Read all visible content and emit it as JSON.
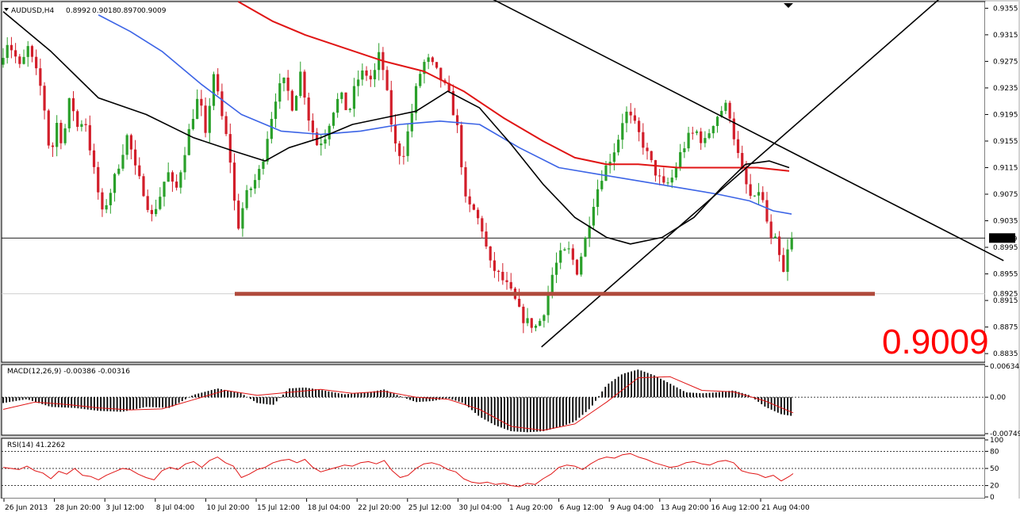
{
  "chart_data": [
    {
      "type": "candlestick",
      "title": "AUDUSD,H4",
      "ohlc_readout": {
        "open": "0.8992",
        "high": "0.9018",
        "low": "0.8970",
        "close": "0.9009"
      },
      "current_price": "0.9009",
      "current_price_big": "0.9009",
      "ylim": [
        0.8822,
        0.9365
      ],
      "price_ticks": [
        "0.9355",
        "0.9315",
        "0.9275",
        "0.9235",
        "0.9195",
        "0.9155",
        "0.9115",
        "0.9075",
        "0.9035",
        "0.8995",
        "0.8955",
        "0.8915",
        "0.8875",
        "0.8835"
      ],
      "support_tag": "0.8925",
      "support_level": 0.8925,
      "x_labels": [
        "26 Jun 2013",
        "28 Jun 20:00",
        "3 Jul 12:00",
        "8 Jul 04:00",
        "10 Jul 20:00",
        "15 Jul 12:00",
        "18 Jul 04:00",
        "22 Jul 20:00",
        "25 Jul 12:00",
        "30 Jul 04:00",
        "1 Aug 20:00",
        "6 Aug 12:00",
        "9 Aug 04:00",
        "13 Aug 20:00",
        "16 Aug 12:00",
        "21 Aug 04:00"
      ],
      "price_path": [
        [
          0,
          0.927
        ],
        [
          10,
          0.9305
        ],
        [
          18,
          0.929
        ],
        [
          28,
          0.926
        ],
        [
          35,
          0.93
        ],
        [
          45,
          0.9265
        ],
        [
          55,
          0.9225
        ],
        [
          65,
          0.9125
        ],
        [
          72,
          0.9185
        ],
        [
          80,
          0.915
        ],
        [
          90,
          0.9225
        ],
        [
          98,
          0.9175
        ],
        [
          108,
          0.919
        ],
        [
          118,
          0.912
        ],
        [
          130,
          0.9045
        ],
        [
          142,
          0.9085
        ],
        [
          152,
          0.9125
        ],
        [
          162,
          0.9165
        ],
        [
          172,
          0.911
        ],
        [
          182,
          0.908
        ],
        [
          192,
          0.904
        ],
        [
          202,
          0.907
        ],
        [
          212,
          0.911
        ],
        [
          222,
          0.9075
        ],
        [
          232,
          0.913
        ],
        [
          242,
          0.9185
        ],
        [
          252,
          0.9225
        ],
        [
          260,
          0.916
        ],
        [
          270,
          0.926
        ],
        [
          280,
          0.9195
        ],
        [
          290,
          0.914
        ],
        [
          300,
          0.902
        ],
        [
          310,
          0.907
        ],
        [
          320,
          0.909
        ],
        [
          330,
          0.9115
        ],
        [
          340,
          0.9175
        ],
        [
          350,
          0.923
        ],
        [
          360,
          0.9245
        ],
        [
          370,
          0.9205
        ],
        [
          380,
          0.926
        ],
        [
          390,
          0.919
        ],
        [
          400,
          0.915
        ],
        [
          410,
          0.916
        ],
        [
          420,
          0.92
        ],
        [
          430,
          0.9225
        ],
        [
          440,
          0.9195
        ],
        [
          450,
          0.9245
        ],
        [
          460,
          0.926
        ],
        [
          470,
          0.9245
        ],
        [
          480,
          0.929
        ],
        [
          490,
          0.9215
        ],
        [
          498,
          0.915
        ],
        [
          508,
          0.913
        ],
        [
          518,
          0.9185
        ],
        [
          528,
          0.925
        ],
        [
          538,
          0.928
        ],
        [
          548,
          0.9265
        ],
        [
          558,
          0.9245
        ],
        [
          568,
          0.922
        ],
        [
          578,
          0.917
        ],
        [
          588,
          0.906
        ],
        [
          598,
          0.905
        ],
        [
          608,
          0.9025
        ],
        [
          618,
          0.897
        ],
        [
          628,
          0.8955
        ],
        [
          638,
          0.894
        ],
        [
          648,
          0.892
        ],
        [
          658,
          0.889
        ],
        [
          668,
          0.888
        ],
        [
          678,
          0.8875
        ],
        [
          688,
          0.8905
        ],
        [
          698,
          0.896
        ],
        [
          708,
          0.8985
        ],
        [
          718,
          0.899
        ],
        [
          728,
          0.896
        ],
        [
          738,
          0.9005
        ],
        [
          748,
          0.906
        ],
        [
          758,
          0.91
        ],
        [
          768,
          0.9125
        ],
        [
          778,
          0.915
        ],
        [
          788,
          0.92
        ],
        [
          798,
          0.9185
        ],
        [
          808,
          0.916
        ],
        [
          818,
          0.913
        ],
        [
          828,
          0.9105
        ],
        [
          838,
          0.9085
        ],
        [
          848,
          0.91
        ],
        [
          858,
          0.9135
        ],
        [
          868,
          0.916
        ],
        [
          878,
          0.917
        ],
        [
          888,
          0.915
        ],
        [
          898,
          0.918
        ],
        [
          908,
          0.92
        ],
        [
          918,
          0.921
        ],
        [
          926,
          0.916
        ],
        [
          934,
          0.9115
        ],
        [
          942,
          0.9085
        ],
        [
          950,
          0.906
        ],
        [
          958,
          0.9085
        ],
        [
          966,
          0.904
        ],
        [
          974,
          0.8995
        ],
        [
          980,
          0.901
        ],
        [
          986,
          0.8945
        ],
        [
          992,
          0.8975
        ],
        [
          995,
          0.9009
        ]
      ],
      "ma_black": [
        [
          0,
          0.935
        ],
        [
          60,
          0.929
        ],
        [
          120,
          0.922
        ],
        [
          180,
          0.9195
        ],
        [
          240,
          0.916
        ],
        [
          290,
          0.914
        ],
        [
          330,
          0.9125
        ],
        [
          360,
          0.9145
        ],
        [
          400,
          0.916
        ],
        [
          440,
          0.918
        ],
        [
          480,
          0.919
        ],
        [
          520,
          0.92
        ],
        [
          560,
          0.923
        ],
        [
          600,
          0.9205
        ],
        [
          640,
          0.915
        ],
        [
          680,
          0.909
        ],
        [
          720,
          0.904
        ],
        [
          760,
          0.901
        ],
        [
          790,
          0.9
        ],
        [
          830,
          0.901
        ],
        [
          870,
          0.904
        ],
        [
          905,
          0.9085
        ],
        [
          935,
          0.912
        ],
        [
          965,
          0.9125
        ],
        [
          990,
          0.9115
        ]
      ],
      "ma_blue": [
        [
          120,
          0.9345
        ],
        [
          160,
          0.932
        ],
        [
          200,
          0.929
        ],
        [
          250,
          0.924
        ],
        [
          300,
          0.9195
        ],
        [
          350,
          0.917
        ],
        [
          400,
          0.9165
        ],
        [
          450,
          0.917
        ],
        [
          500,
          0.918
        ],
        [
          550,
          0.9185
        ],
        [
          600,
          0.918
        ],
        [
          650,
          0.9145
        ],
        [
          700,
          0.9115
        ],
        [
          750,
          0.9105
        ],
        [
          800,
          0.9095
        ],
        [
          850,
          0.9085
        ],
        [
          900,
          0.9075
        ],
        [
          940,
          0.9065
        ],
        [
          970,
          0.905
        ],
        [
          993,
          0.9045
        ]
      ],
      "ma_red": [
        [
          296,
          0.9365
        ],
        [
          340,
          0.9335
        ],
        [
          380,
          0.9315
        ],
        [
          430,
          0.9295
        ],
        [
          480,
          0.9275
        ],
        [
          530,
          0.926
        ],
        [
          580,
          0.923
        ],
        [
          630,
          0.919
        ],
        [
          680,
          0.9155
        ],
        [
          720,
          0.913
        ],
        [
          760,
          0.912
        ],
        [
          800,
          0.912
        ],
        [
          850,
          0.9115
        ],
        [
          900,
          0.9115
        ],
        [
          950,
          0.9115
        ],
        [
          990,
          0.911
        ]
      ],
      "trendlines": [
        {
          "from": [
            606,
            0.9375
          ],
          "to": [
            1260,
            0.8975
          ]
        },
        {
          "from": [
            678,
            0.8845
          ],
          "to": [
            1185,
            0.9375
          ]
        }
      ]
    },
    {
      "type": "histogram",
      "title": "MACD(12,26,9) -0.00386 -0.00316",
      "ylim": [
        -0.0078,
        0.0067
      ],
      "ticks": [
        "0.00634",
        "0.00",
        "-0.00749"
      ],
      "main_path": [
        [
          0,
          -0.0012
        ],
        [
          30,
          -0.0004
        ],
        [
          60,
          -0.002
        ],
        [
          90,
          -0.0022
        ],
        [
          120,
          -0.0028
        ],
        [
          150,
          -0.003
        ],
        [
          180,
          -0.002
        ],
        [
          210,
          -0.0022
        ],
        [
          240,
          0.0005
        ],
        [
          270,
          0.0018
        ],
        [
          300,
          0.0008
        ],
        [
          320,
          -0.0012
        ],
        [
          340,
          -0.0016
        ],
        [
          360,
          0.0018
        ],
        [
          380,
          0.002
        ],
        [
          400,
          0.0015
        ],
        [
          430,
          0.0006
        ],
        [
          460,
          0.001
        ],
        [
          480,
          0.0016
        ],
        [
          500,
          0.0002
        ],
        [
          520,
          -0.001
        ],
        [
          540,
          -0.0008
        ],
        [
          560,
          -0.0002
        ],
        [
          580,
          -0.0012
        ],
        [
          600,
          -0.004
        ],
        [
          620,
          -0.0058
        ],
        [
          640,
          -0.007
        ],
        [
          660,
          -0.0072
        ],
        [
          680,
          -0.007
        ],
        [
          700,
          -0.0062
        ],
        [
          720,
          -0.005
        ],
        [
          740,
          -0.0022
        ],
        [
          760,
          0.0025
        ],
        [
          780,
          0.0048
        ],
        [
          800,
          0.0057
        ],
        [
          820,
          0.0045
        ],
        [
          840,
          0.0028
        ],
        [
          860,
          0.001
        ],
        [
          880,
          0.0008
        ],
        [
          900,
          0.001
        ],
        [
          920,
          0.0014
        ],
        [
          940,
          0.0004
        ],
        [
          960,
          -0.002
        ],
        [
          980,
          -0.0035
        ],
        [
          995,
          -0.0039
        ]
      ],
      "signal_path": [
        [
          0,
          -0.0025
        ],
        [
          40,
          -0.001
        ],
        [
          80,
          -0.0015
        ],
        [
          120,
          -0.0022
        ],
        [
          160,
          -0.0026
        ],
        [
          200,
          -0.0024
        ],
        [
          240,
          -0.0005
        ],
        [
          280,
          0.0014
        ],
        [
          320,
          0.0004
        ],
        [
          360,
          0.001
        ],
        [
          400,
          0.0016
        ],
        [
          440,
          0.0008
        ],
        [
          480,
          0.0012
        ],
        [
          520,
          0.0
        ],
        [
          560,
          -0.0004
        ],
        [
          600,
          -0.0025
        ],
        [
          640,
          -0.006
        ],
        [
          680,
          -0.0068
        ],
        [
          720,
          -0.0055
        ],
        [
          760,
          -0.001
        ],
        [
          800,
          0.004
        ],
        [
          840,
          0.0042
        ],
        [
          880,
          0.0014
        ],
        [
          920,
          0.0011
        ],
        [
          960,
          -0.0008
        ],
        [
          995,
          -0.0032
        ]
      ]
    },
    {
      "type": "line",
      "title": "RSI(14) 41.2262",
      "ylim": [
        0,
        100
      ],
      "ticks": [
        "100",
        "80",
        "50",
        "20",
        "0"
      ],
      "levels": [
        80,
        50,
        20
      ],
      "rsi_path": [
        [
          0,
          52
        ],
        [
          10,
          50
        ],
        [
          20,
          48
        ],
        [
          30,
          54
        ],
        [
          40,
          46
        ],
        [
          50,
          42
        ],
        [
          60,
          32
        ],
        [
          70,
          45
        ],
        [
          80,
          40
        ],
        [
          90,
          50
        ],
        [
          100,
          38
        ],
        [
          110,
          36
        ],
        [
          120,
          30
        ],
        [
          130,
          38
        ],
        [
          140,
          44
        ],
        [
          150,
          50
        ],
        [
          160,
          48
        ],
        [
          170,
          40
        ],
        [
          180,
          34
        ],
        [
          190,
          30
        ],
        [
          200,
          46
        ],
        [
          210,
          52
        ],
        [
          220,
          48
        ],
        [
          230,
          58
        ],
        [
          240,
          62
        ],
        [
          250,
          52
        ],
        [
          260,
          64
        ],
        [
          270,
          70
        ],
        [
          280,
          60
        ],
        [
          290,
          54
        ],
        [
          300,
          34
        ],
        [
          310,
          40
        ],
        [
          320,
          48
        ],
        [
          330,
          52
        ],
        [
          340,
          60
        ],
        [
          350,
          64
        ],
        [
          360,
          66
        ],
        [
          370,
          60
        ],
        [
          380,
          66
        ],
        [
          390,
          52
        ],
        [
          400,
          44
        ],
        [
          410,
          48
        ],
        [
          420,
          52
        ],
        [
          430,
          56
        ],
        [
          440,
          54
        ],
        [
          450,
          60
        ],
        [
          460,
          62
        ],
        [
          470,
          58
        ],
        [
          480,
          64
        ],
        [
          490,
          46
        ],
        [
          500,
          34
        ],
        [
          510,
          38
        ],
        [
          520,
          50
        ],
        [
          530,
          58
        ],
        [
          540,
          60
        ],
        [
          550,
          56
        ],
        [
          560,
          48
        ],
        [
          570,
          44
        ],
        [
          580,
          32
        ],
        [
          590,
          26
        ],
        [
          600,
          24
        ],
        [
          610,
          26
        ],
        [
          620,
          22
        ],
        [
          630,
          24
        ],
        [
          640,
          20
        ],
        [
          650,
          18
        ],
        [
          660,
          24
        ],
        [
          670,
          22
        ],
        [
          680,
          32
        ],
        [
          690,
          40
        ],
        [
          700,
          52
        ],
        [
          710,
          56
        ],
        [
          720,
          54
        ],
        [
          730,
          48
        ],
        [
          740,
          58
        ],
        [
          750,
          66
        ],
        [
          760,
          70
        ],
        [
          770,
          68
        ],
        [
          780,
          74
        ],
        [
          790,
          76
        ],
        [
          800,
          70
        ],
        [
          810,
          66
        ],
        [
          820,
          60
        ],
        [
          830,
          56
        ],
        [
          840,
          52
        ],
        [
          850,
          54
        ],
        [
          860,
          60
        ],
        [
          870,
          62
        ],
        [
          880,
          58
        ],
        [
          890,
          56
        ],
        [
          900,
          62
        ],
        [
          910,
          64
        ],
        [
          920,
          60
        ],
        [
          930,
          46
        ],
        [
          940,
          42
        ],
        [
          950,
          40
        ],
        [
          960,
          34
        ],
        [
          970,
          38
        ],
        [
          980,
          28
        ],
        [
          990,
          36
        ],
        [
          995,
          41
        ]
      ]
    }
  ],
  "colors": {
    "panel_bg": "#ffffff",
    "frame": "#d4d4d4",
    "bull": "#2aa02a",
    "bear": "#d21e2a",
    "ma_black": "#000000",
    "ma_blue": "#3c64e6",
    "ma_red": "#e01414",
    "support": "#b04a3c",
    "macd_hist": "#000000",
    "macd_signal": "#e01414",
    "rsi": "#e01414",
    "big_price": "#ff0000"
  }
}
